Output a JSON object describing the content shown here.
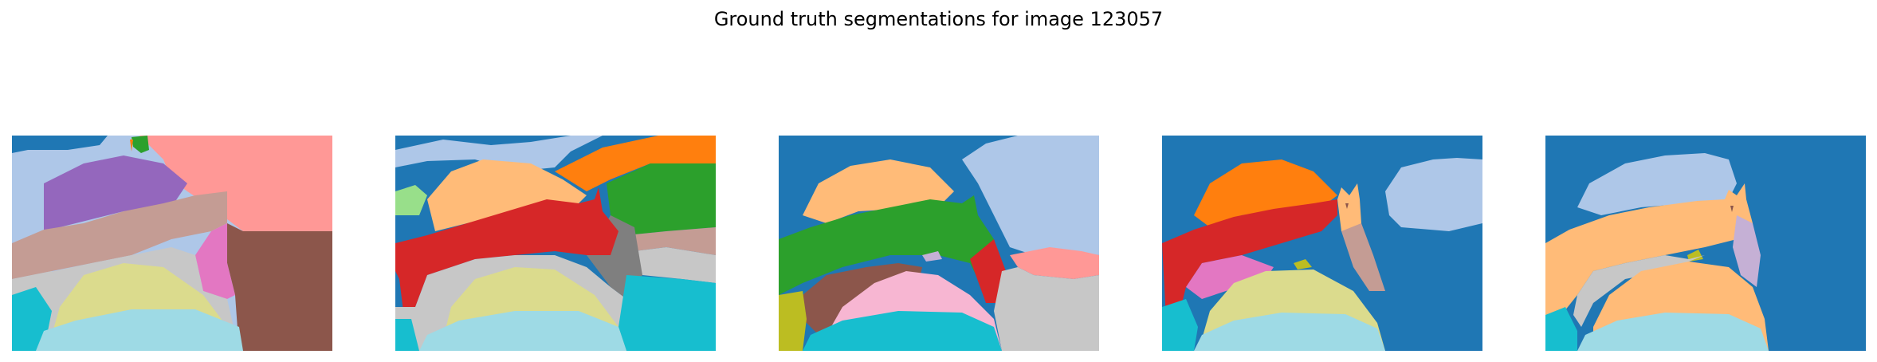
{
  "figure": {
    "title": "Ground truth segmentations for image 123057"
  },
  "panels": [
    {
      "name": "segmentation-1",
      "index": 1
    },
    {
      "name": "segmentation-2",
      "index": 2
    },
    {
      "name": "segmentation-3",
      "index": 3
    },
    {
      "name": "segmentation-4",
      "index": 4
    },
    {
      "name": "segmentation-5",
      "index": 5
    }
  ],
  "palette": {
    "blue": "#1f77b4",
    "light_blue": "#aec7e8",
    "orange": "#ff7f0e",
    "light_orange": "#ffbb78",
    "green": "#2ca02c",
    "light_green": "#98df8a",
    "red": "#d62728",
    "pink_red": "#ff9896",
    "purple": "#9467bd",
    "lavender": "#c5b0d5",
    "brown": "#8c564b",
    "tan": "#c49c94",
    "magenta": "#e377c2",
    "pink": "#f7b6d2",
    "gray": "#7f7f7f",
    "light_gray": "#c7c7c7",
    "olive": "#bcbd22",
    "khaki": "#dbdb8d",
    "cyan": "#17becf",
    "light_cyan": "#9edae5"
  }
}
